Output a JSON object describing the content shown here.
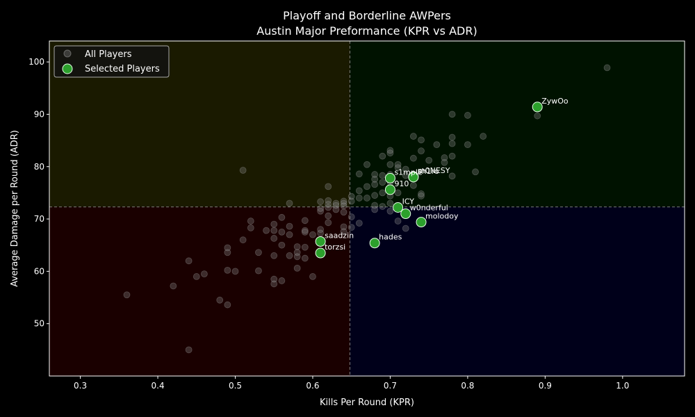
{
  "chart_data": {
    "type": "scatter",
    "title": "Playoff and Borderline AWPers",
    "subtitle": "Austin Major Preformance (KPR vs ADR)",
    "xlabel": "Kills Per Round (KPR)",
    "ylabel": "Average Damage per Round (ADR)",
    "xlim": [
      0.26,
      1.08
    ],
    "ylim": [
      40,
      104
    ],
    "xticks": [
      0.3,
      0.4,
      0.5,
      0.6,
      0.7,
      0.8,
      0.9,
      1.0
    ],
    "yticks": [
      50,
      60,
      70,
      80,
      90,
      100
    ],
    "xtick_labels": [
      "0.3",
      "0.4",
      "0.5",
      "0.6",
      "0.7",
      "0.8",
      "0.9",
      "1.0"
    ],
    "ytick_labels": [
      "50",
      "60",
      "70",
      "80",
      "90",
      "100"
    ],
    "grid": false,
    "legend_position": "top-left",
    "reference_lines": {
      "x": 0.648,
      "y": 72.3
    },
    "quadrant_colors": {
      "top_left": "#1a1a00",
      "top_right": "#001200",
      "bottom_left": "#1a0000",
      "bottom_right": "#00001a"
    },
    "colors": {
      "all_players": "#8a8a8a",
      "selected_fill": "#2ca02c",
      "selected_edge": "#e8ffe8",
      "reference_line": "#9a9a9a",
      "text": "#ffffff",
      "background": "#000000"
    },
    "series": [
      {
        "name": "All Players",
        "points": [
          [
            0.36,
            55.5
          ],
          [
            0.42,
            57.2
          ],
          [
            0.44,
            62.0
          ],
          [
            0.44,
            45.0
          ],
          [
            0.45,
            59.0
          ],
          [
            0.46,
            59.5
          ],
          [
            0.48,
            54.5
          ],
          [
            0.49,
            53.6
          ],
          [
            0.49,
            63.6
          ],
          [
            0.49,
            64.5
          ],
          [
            0.49,
            60.2
          ],
          [
            0.5,
            60.0
          ],
          [
            0.51,
            66.0
          ],
          [
            0.51,
            79.3
          ],
          [
            0.52,
            68.3
          ],
          [
            0.52,
            69.6
          ],
          [
            0.53,
            63.6
          ],
          [
            0.53,
            60.1
          ],
          [
            0.54,
            67.8
          ],
          [
            0.55,
            69.0
          ],
          [
            0.55,
            67.8
          ],
          [
            0.55,
            66.3
          ],
          [
            0.55,
            63.0
          ],
          [
            0.55,
            58.5
          ],
          [
            0.55,
            57.6
          ],
          [
            0.56,
            70.3
          ],
          [
            0.56,
            67.5
          ],
          [
            0.56,
            65.0
          ],
          [
            0.56,
            58.2
          ],
          [
            0.57,
            73.0
          ],
          [
            0.57,
            68.6
          ],
          [
            0.57,
            67.0
          ],
          [
            0.57,
            63.0
          ],
          [
            0.58,
            64.7
          ],
          [
            0.58,
            63.6
          ],
          [
            0.58,
            62.8
          ],
          [
            0.58,
            60.6
          ],
          [
            0.59,
            69.7
          ],
          [
            0.59,
            67.8
          ],
          [
            0.59,
            67.5
          ],
          [
            0.59,
            64.6
          ],
          [
            0.59,
            62.5
          ],
          [
            0.6,
            67.0
          ],
          [
            0.6,
            59.0
          ],
          [
            0.61,
            73.3
          ],
          [
            0.61,
            72.0
          ],
          [
            0.61,
            71.5
          ],
          [
            0.61,
            68.0
          ],
          [
            0.61,
            67.3
          ],
          [
            0.62,
            76.2
          ],
          [
            0.62,
            73.5
          ],
          [
            0.62,
            72.8
          ],
          [
            0.62,
            72.2
          ],
          [
            0.62,
            70.6
          ],
          [
            0.62,
            69.3
          ],
          [
            0.63,
            73.0
          ],
          [
            0.63,
            72.6
          ],
          [
            0.63,
            71.8
          ],
          [
            0.64,
            73.4
          ],
          [
            0.64,
            73.0
          ],
          [
            0.64,
            72.5
          ],
          [
            0.64,
            71.3
          ],
          [
            0.64,
            68.5
          ],
          [
            0.64,
            67.6
          ],
          [
            0.65,
            74.3
          ],
          [
            0.65,
            73.4
          ],
          [
            0.65,
            70.4
          ],
          [
            0.65,
            68.4
          ],
          [
            0.66,
            78.6
          ],
          [
            0.66,
            75.4
          ],
          [
            0.66,
            74.0
          ],
          [
            0.66,
            69.2
          ],
          [
            0.67,
            80.4
          ],
          [
            0.67,
            76.2
          ],
          [
            0.67,
            74.0
          ],
          [
            0.68,
            78.5
          ],
          [
            0.68,
            77.6
          ],
          [
            0.68,
            76.6
          ],
          [
            0.68,
            74.5
          ],
          [
            0.68,
            72.6
          ],
          [
            0.68,
            71.8
          ],
          [
            0.69,
            82.0
          ],
          [
            0.69,
            78.3
          ],
          [
            0.69,
            77.0
          ],
          [
            0.69,
            75.0
          ],
          [
            0.69,
            72.4
          ],
          [
            0.7,
            83.1
          ],
          [
            0.7,
            82.6
          ],
          [
            0.7,
            80.4
          ],
          [
            0.7,
            78.5
          ],
          [
            0.7,
            77.0
          ],
          [
            0.7,
            74.4
          ],
          [
            0.7,
            73.0
          ],
          [
            0.7,
            71.5
          ],
          [
            0.71,
            80.4
          ],
          [
            0.71,
            79.8
          ],
          [
            0.71,
            75.0
          ],
          [
            0.71,
            69.6
          ],
          [
            0.72,
            79.5
          ],
          [
            0.72,
            78.3
          ],
          [
            0.72,
            68.2
          ],
          [
            0.73,
            85.8
          ],
          [
            0.73,
            81.6
          ],
          [
            0.73,
            77.9
          ],
          [
            0.73,
            76.4
          ],
          [
            0.74,
            85.1
          ],
          [
            0.74,
            83.0
          ],
          [
            0.74,
            74.8
          ],
          [
            0.74,
            74.4
          ],
          [
            0.75,
            81.2
          ],
          [
            0.76,
            84.2
          ],
          [
            0.77,
            81.7
          ],
          [
            0.77,
            80.8
          ],
          [
            0.78,
            90.0
          ],
          [
            0.78,
            85.6
          ],
          [
            0.78,
            84.4
          ],
          [
            0.78,
            82.0
          ],
          [
            0.78,
            78.2
          ],
          [
            0.8,
            89.8
          ],
          [
            0.8,
            84.2
          ],
          [
            0.81,
            79.0
          ],
          [
            0.82,
            85.8
          ],
          [
            0.89,
            89.7
          ],
          [
            0.98,
            98.9
          ]
        ]
      },
      {
        "name": "Selected Players",
        "points": [
          {
            "label": "ZywOo",
            "x": 0.89,
            "y": 91.4
          },
          {
            "label": "s1mple",
            "x": 0.7,
            "y": 77.8
          },
          {
            "label": "w0nderful",
            "x": 0.72,
            "y": 71.0
          },
          {
            "label": "m0NESY",
            "x": 0.73,
            "y": 78.1
          },
          {
            "label": "sh1ro",
            "x": 0.73,
            "y": 78.0
          },
          {
            "label": "910",
            "x": 0.7,
            "y": 75.6
          },
          {
            "label": "ICY",
            "x": 0.71,
            "y": 72.2
          },
          {
            "label": "molodoy",
            "x": 0.74,
            "y": 69.4
          },
          {
            "label": "hades",
            "x": 0.68,
            "y": 65.4
          },
          {
            "label": "saadzin",
            "x": 0.61,
            "y": 65.7
          },
          {
            "label": "torzsi",
            "x": 0.61,
            "y": 63.5
          }
        ]
      }
    ]
  }
}
